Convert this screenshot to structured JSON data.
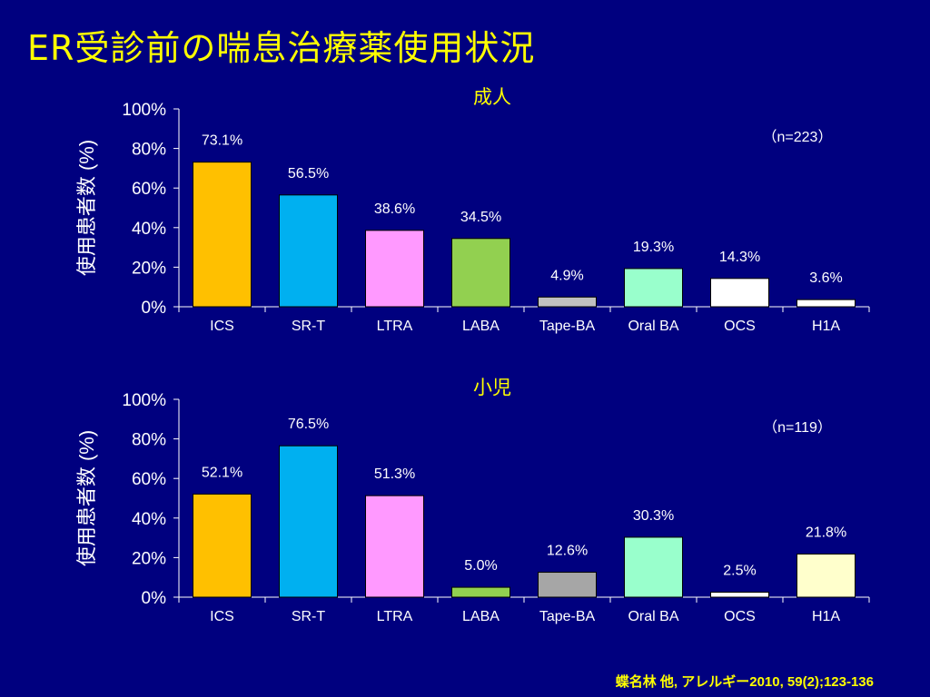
{
  "title": "ER受診前の喘息治療薬使用状況",
  "citation": "蝶名林 他, アレルギー2010, 59(2);123-136",
  "colors": {
    "background": "#00007f",
    "title": "#ffff00",
    "panel_title": "#ffff00",
    "text": "#ffffff"
  },
  "chart_data": [
    {
      "type": "bar",
      "title": "成人",
      "annotation": "（n=223）",
      "ylabel": "使用患者数 (%)",
      "ylim": [
        0,
        100
      ],
      "yticks": [
        "0%",
        "20%",
        "40%",
        "60%",
        "80%",
        "100%"
      ],
      "categories": [
        "ICS",
        "SR-T",
        "LTRA",
        "LABA",
        "Tape-BA",
        "Oral BA",
        "OCS",
        "H1A"
      ],
      "values": [
        73.1,
        56.5,
        38.6,
        34.5,
        4.9,
        19.3,
        14.3,
        3.6
      ],
      "value_labels": [
        "73.1%",
        "56.5%",
        "38.6%",
        "34.5%",
        "4.9%",
        "19.3%",
        "14.3%",
        "3.6%"
      ],
      "colors": [
        "#ffc000",
        "#00b0f0",
        "#ff99ff",
        "#92d050",
        "#c0c0c0",
        "#99ffcc",
        "#ffffff",
        "#ffffff"
      ],
      "grid": false
    },
    {
      "type": "bar",
      "title": "小児",
      "annotation": "（n=119）",
      "ylabel": "使用患者数 (%)",
      "ylim": [
        0,
        100
      ],
      "yticks": [
        "0%",
        "20%",
        "40%",
        "60%",
        "80%",
        "100%"
      ],
      "categories": [
        "ICS",
        "SR-T",
        "LTRA",
        "LABA",
        "Tape-BA",
        "Oral BA",
        "OCS",
        "H1A"
      ],
      "values": [
        52.1,
        76.5,
        51.3,
        5.0,
        12.6,
        30.3,
        2.5,
        21.8
      ],
      "value_labels": [
        "52.1%",
        "76.5%",
        "51.3%",
        "5.0%",
        "12.6%",
        "30.3%",
        "2.5%",
        "21.8%"
      ],
      "colors": [
        "#ffc000",
        "#00b0f0",
        "#ff99ff",
        "#92d050",
        "#a6a6a6",
        "#99ffcc",
        "#ffffff",
        "#ffffcc"
      ],
      "grid": false
    }
  ]
}
